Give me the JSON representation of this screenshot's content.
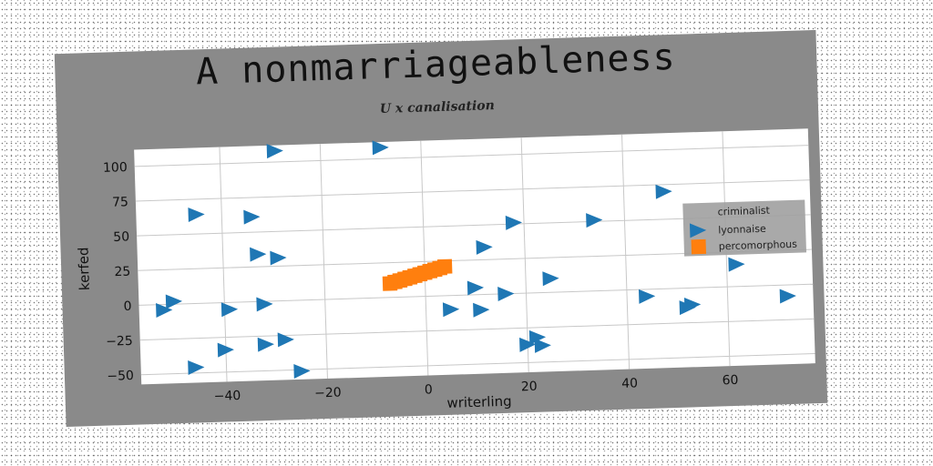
{
  "chart_data": {
    "type": "scatter",
    "title": "A nonmarriageableness",
    "subtitle": "U x canalisation",
    "xlabel": "writerling",
    "ylabel": "kerfed",
    "xlim": [
      -57,
      77
    ],
    "ylim": [
      -57,
      112
    ],
    "xticks": [
      -40,
      -20,
      0,
      20,
      40,
      60
    ],
    "yticks": [
      -50,
      -25,
      0,
      25,
      50,
      75,
      100
    ],
    "grid": true,
    "legend": {
      "placement": "right",
      "title": "criminalist",
      "entries": [
        {
          "label": "lyonnaise",
          "marker": "triangle-right",
          "color": "#1f77b4"
        },
        {
          "label": "percomorphous",
          "marker": "square",
          "color": "#ff7f0e"
        }
      ]
    },
    "series": [
      {
        "name": "lyonnaise",
        "color": "#1f77b4",
        "marker": "triangle-right",
        "points": [
          [
            -29,
            108
          ],
          [
            -8,
            108
          ],
          [
            -45,
            64
          ],
          [
            -34,
            61
          ],
          [
            48,
            70
          ],
          [
            18,
            51
          ],
          [
            34,
            51
          ],
          [
            -33,
            34
          ],
          [
            -29,
            31
          ],
          [
            12,
            34
          ],
          [
            62,
            16
          ],
          [
            25,
            10
          ],
          [
            10,
            5
          ],
          [
            16,
            0
          ],
          [
            -50,
            2
          ],
          [
            -52,
            -4
          ],
          [
            -39,
            -5
          ],
          [
            -32,
            -2
          ],
          [
            44,
            -5
          ],
          [
            72,
            -8
          ],
          [
            5,
            -10
          ],
          [
            11,
            -11
          ],
          [
            53,
            -12
          ],
          [
            52,
            -14
          ],
          [
            -28,
            -28
          ],
          [
            -32,
            -31
          ],
          [
            -40,
            -34
          ],
          [
            22,
            -32
          ],
          [
            20,
            -37
          ],
          [
            23,
            -38
          ],
          [
            -46,
            -46
          ],
          [
            -25,
            -51
          ]
        ]
      },
      {
        "name": "percomorphous",
        "color": "#ff7f0e",
        "marker": "square",
        "points": [
          [
            -7,
            10
          ],
          [
            -6,
            11
          ],
          [
            -5,
            12
          ],
          [
            -4,
            13
          ],
          [
            -3,
            14
          ],
          [
            -2,
            15
          ],
          [
            -1,
            16
          ],
          [
            0,
            17
          ],
          [
            1,
            18
          ],
          [
            2,
            19
          ],
          [
            3,
            20
          ],
          [
            4,
            21
          ]
        ]
      }
    ]
  }
}
